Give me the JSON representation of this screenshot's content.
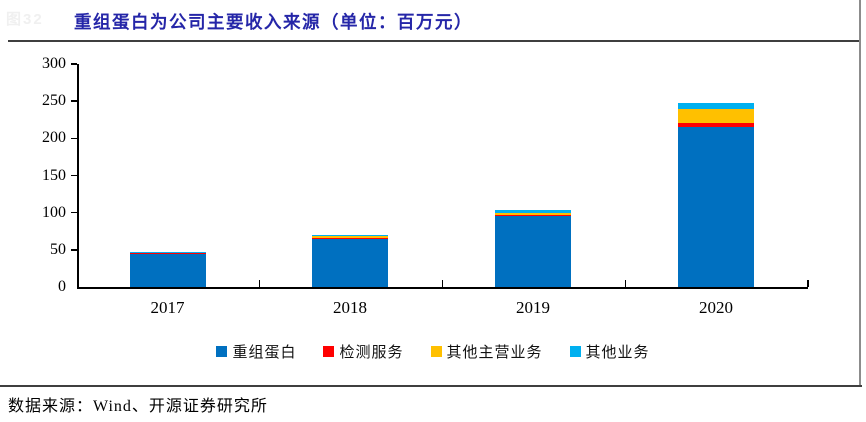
{
  "watermark": "图32",
  "title": "重组蛋白为公司主要收入来源（单位：百万元）",
  "footer": {
    "source_text": "数据来源：Wind、开源证券研究所"
  },
  "legend": {
    "items": [
      {
        "label": "重组蛋白",
        "color": "#0070c0"
      },
      {
        "label": "检测服务",
        "color": "#ff0000"
      },
      {
        "label": "其他主营业务",
        "color": "#ffc000"
      },
      {
        "label": "其他业务",
        "color": "#00b0f0"
      }
    ]
  },
  "colors": {
    "title": "#2526a8",
    "axis": "#000000",
    "rule": "#3f3f3f",
    "right_border": "#8c8c8c",
    "bar_blue": "#0070c0",
    "bar_red": "#ff0000",
    "bar_yellow": "#ffc000",
    "bar_cyan": "#00b0f0"
  },
  "chart_data": {
    "type": "bar",
    "stacked": true,
    "title": "重组蛋白为公司主要收入来源（单位：百万元）",
    "unit": "百万元",
    "categories": [
      "2017",
      "2018",
      "2019",
      "2020"
    ],
    "series": [
      {
        "name": "重组蛋白",
        "color": "#0070c0",
        "values": [
          45.5,
          66.0,
          95.0,
          215.0
        ]
      },
      {
        "name": "检测服务",
        "color": "#ff0000",
        "values": [
          0.3,
          0.5,
          2.5,
          6.0
        ]
      },
      {
        "name": "其他主营业务",
        "color": "#ffc000",
        "values": [
          1.5,
          1.5,
          2.5,
          19.0
        ]
      },
      {
        "name": "其他业务",
        "color": "#00b0f0",
        "values": [
          0.4,
          1.5,
          3.0,
          8.0
        ]
      }
    ],
    "totals": [
      47.7,
      69.5,
      103.0,
      248.0
    ],
    "xlabel": "",
    "ylabel": "",
    "ylim": [
      0,
      300
    ],
    "yticks": [
      0,
      50,
      100,
      150,
      200,
      250,
      300
    ],
    "grid": false,
    "legend_position": "bottom"
  }
}
